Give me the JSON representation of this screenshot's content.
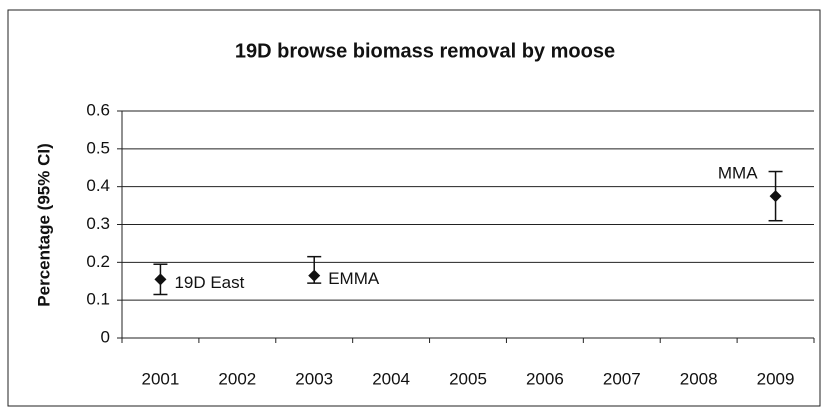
{
  "chart_data": {
    "type": "errorbar",
    "title": "19D browse biomass removal by moose",
    "y_label": "Percentage (95% CI)",
    "categories": [
      "2001",
      "2002",
      "2003",
      "2004",
      "2005",
      "2006",
      "2007",
      "2008",
      "2009"
    ],
    "series": [
      {
        "color": "#111111",
        "values": [
          0.155,
          null,
          0.165,
          null,
          null,
          null,
          null,
          null,
          0.375
        ],
        "ci_low": [
          0.115,
          null,
          0.145,
          null,
          null,
          null,
          null,
          null,
          0.31
        ],
        "ci_high": [
          0.195,
          null,
          0.215,
          null,
          null,
          null,
          null,
          null,
          0.44
        ],
        "point_labels": [
          "19D East",
          null,
          "EMMA",
          null,
          null,
          null,
          null,
          null,
          "MMA"
        ]
      }
    ],
    "ylim": [
      0,
      0.6
    ],
    "yticks": [
      0,
      0.1,
      0.2,
      0.3,
      0.4,
      0.5,
      0.6
    ],
    "grid": true
  }
}
